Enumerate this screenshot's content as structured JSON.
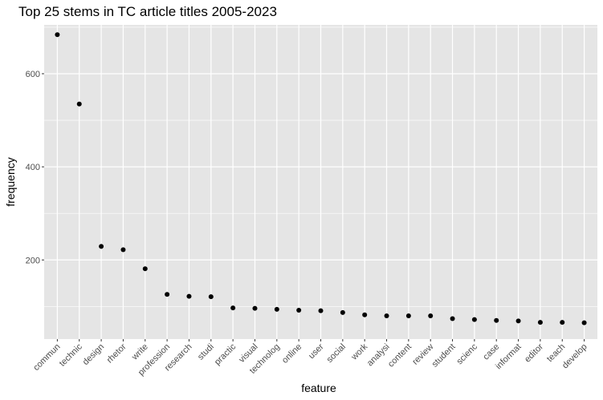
{
  "chart_data": {
    "type": "scatter",
    "title": "Top 25 stems in TC article titles 2005-2023",
    "xlabel": "feature",
    "ylabel": "frequency",
    "categories": [
      "commun",
      "technic",
      "design",
      "rhetor",
      "write",
      "profession",
      "research",
      "studi",
      "practic",
      "visual",
      "technolog",
      "online",
      "user",
      "social",
      "work",
      "analysi",
      "content",
      "review",
      "student",
      "scienc",
      "case",
      "informat",
      "editor",
      "teach",
      "develop"
    ],
    "values": [
      684,
      535,
      229,
      222,
      181,
      126,
      122,
      121,
      97,
      96,
      94,
      92,
      91,
      87,
      82,
      80,
      80,
      80,
      74,
      72,
      70,
      69,
      66,
      66,
      65
    ],
    "ylim": [
      30,
      705
    ],
    "yticks": [
      200,
      400,
      600
    ],
    "ytick_labels": [
      "200",
      "400",
      "600"
    ],
    "grid": true,
    "panel_background": "#e5e5e5",
    "grid_color": "#ffffff",
    "point_color": "#000000"
  }
}
